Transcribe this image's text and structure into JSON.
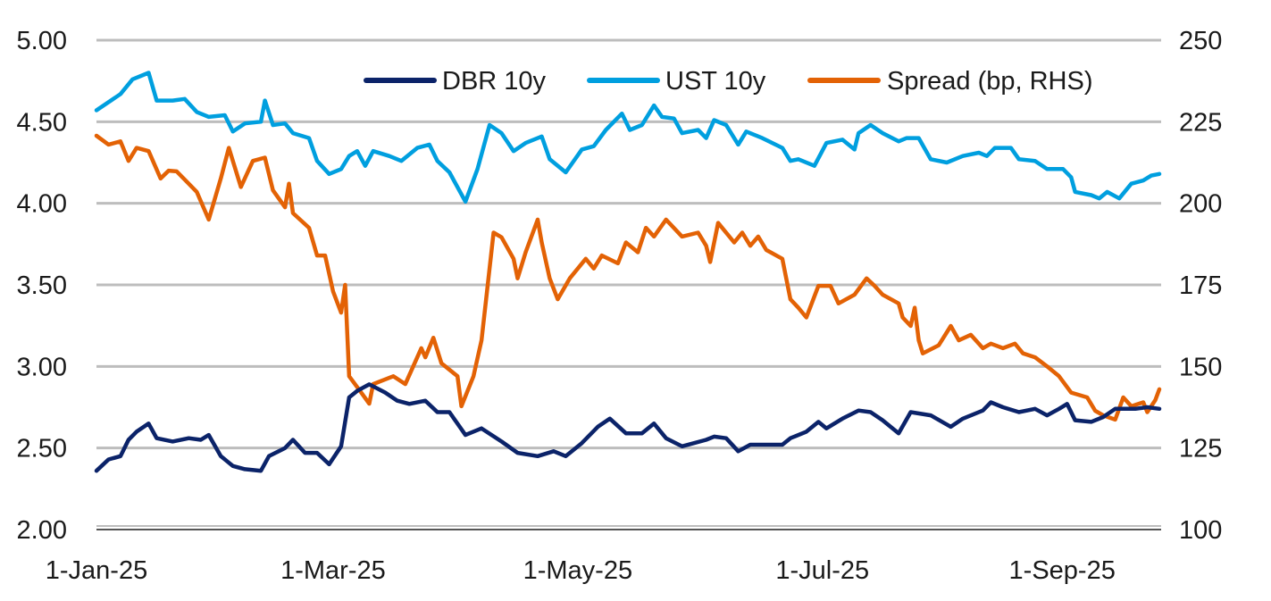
{
  "chart_data": {
    "type": "line",
    "title": "",
    "xlabel": "",
    "ylabel": "",
    "xlim": [
      0,
      265
    ],
    "ylim": [
      2.0,
      5.0
    ],
    "y2lim": [
      100,
      250
    ],
    "grid": true,
    "legend_position": "top-right",
    "x_ticks": [
      {
        "day": 0,
        "label": "1-Jan-25"
      },
      {
        "day": 59,
        "label": "1-Mar-25"
      },
      {
        "day": 120,
        "label": "1-May-25"
      },
      {
        "day": 181,
        "label": "1-Jul-25"
      },
      {
        "day": 243,
        "label": "1-Sep-25"
      }
    ],
    "y_ticks": [
      "2.00",
      "2.50",
      "3.00",
      "3.50",
      "4.00",
      "4.50",
      "5.00"
    ],
    "y_tick_values": [
      2.0,
      2.5,
      3.0,
      3.5,
      4.0,
      4.5,
      5.0
    ],
    "y2_ticks": [
      "100",
      "125",
      "150",
      "175",
      "200",
      "225",
      "250"
    ],
    "series": [
      {
        "name": "DBR 10y",
        "axis": "left",
        "color": "#0b2369",
        "points": [
          [
            0,
            2.36
          ],
          [
            3,
            2.43
          ],
          [
            6,
            2.45
          ],
          [
            8,
            2.55
          ],
          [
            10,
            2.6
          ],
          [
            13,
            2.65
          ],
          [
            15,
            2.56
          ],
          [
            19,
            2.54
          ],
          [
            23,
            2.56
          ],
          [
            26,
            2.55
          ],
          [
            28,
            2.58
          ],
          [
            31,
            2.45
          ],
          [
            34,
            2.39
          ],
          [
            37,
            2.37
          ],
          [
            41,
            2.36
          ],
          [
            43,
            2.45
          ],
          [
            47,
            2.5
          ],
          [
            49,
            2.55
          ],
          [
            52,
            2.47
          ],
          [
            55,
            2.47
          ],
          [
            58,
            2.4
          ],
          [
            61,
            2.51
          ],
          [
            63,
            2.81
          ],
          [
            65,
            2.85
          ],
          [
            68,
            2.89
          ],
          [
            72,
            2.84
          ],
          [
            75,
            2.79
          ],
          [
            78,
            2.77
          ],
          [
            82,
            2.79
          ],
          [
            85,
            2.72
          ],
          [
            88,
            2.72
          ],
          [
            92,
            2.58
          ],
          [
            96,
            2.62
          ],
          [
            101,
            2.54
          ],
          [
            105,
            2.47
          ],
          [
            110,
            2.45
          ],
          [
            114,
            2.48
          ],
          [
            117,
            2.45
          ],
          [
            121,
            2.53
          ],
          [
            125,
            2.63
          ],
          [
            128,
            2.68
          ],
          [
            132,
            2.59
          ],
          [
            136,
            2.59
          ],
          [
            139,
            2.65
          ],
          [
            142,
            2.56
          ],
          [
            146,
            2.51
          ],
          [
            152,
            2.55
          ],
          [
            154,
            2.57
          ],
          [
            157,
            2.56
          ],
          [
            160,
            2.48
          ],
          [
            163,
            2.52
          ],
          [
            167,
            2.52
          ],
          [
            171,
            2.52
          ],
          [
            173,
            2.56
          ],
          [
            177,
            2.6
          ],
          [
            180,
            2.66
          ],
          [
            182,
            2.62
          ],
          [
            186,
            2.68
          ],
          [
            190,
            2.73
          ],
          [
            193,
            2.72
          ],
          [
            196,
            2.67
          ],
          [
            200,
            2.59
          ],
          [
            203,
            2.72
          ],
          [
            208,
            2.7
          ],
          [
            213,
            2.63
          ],
          [
            216,
            2.68
          ],
          [
            221,
            2.73
          ],
          [
            223,
            2.78
          ],
          [
            226,
            2.75
          ],
          [
            230,
            2.72
          ],
          [
            234,
            2.74
          ],
          [
            237,
            2.7
          ],
          [
            240,
            2.74
          ],
          [
            242,
            2.77
          ],
          [
            244,
            2.67
          ],
          [
            248,
            2.66
          ],
          [
            251,
            2.69
          ],
          [
            254,
            2.74
          ],
          [
            259,
            2.74
          ],
          [
            262,
            2.75
          ],
          [
            265,
            2.74
          ]
        ]
      },
      {
        "name": "UST 10y",
        "axis": "left",
        "color": "#009fdf",
        "points": [
          [
            0,
            4.57
          ],
          [
            3,
            4.62
          ],
          [
            6,
            4.67
          ],
          [
            9,
            4.76
          ],
          [
            13,
            4.8
          ],
          [
            15,
            4.63
          ],
          [
            19,
            4.63
          ],
          [
            22,
            4.64
          ],
          [
            25,
            4.56
          ],
          [
            28,
            4.53
          ],
          [
            32,
            4.54
          ],
          [
            34,
            4.44
          ],
          [
            37,
            4.49
          ],
          [
            41,
            4.5
          ],
          [
            42,
            4.63
          ],
          [
            44,
            4.48
          ],
          [
            47,
            4.49
          ],
          [
            49,
            4.43
          ],
          [
            53,
            4.4
          ],
          [
            55,
            4.26
          ],
          [
            58,
            4.18
          ],
          [
            61,
            4.21
          ],
          [
            63,
            4.29
          ],
          [
            65,
            4.32
          ],
          [
            67,
            4.23
          ],
          [
            69,
            4.32
          ],
          [
            73,
            4.29
          ],
          [
            76,
            4.26
          ],
          [
            80,
            4.34
          ],
          [
            83,
            4.36
          ],
          [
            85,
            4.26
          ],
          [
            88,
            4.19
          ],
          [
            92,
            4.01
          ],
          [
            95,
            4.21
          ],
          [
            98,
            4.48
          ],
          [
            101,
            4.43
          ],
          [
            104,
            4.32
          ],
          [
            107,
            4.37
          ],
          [
            111,
            4.41
          ],
          [
            113,
            4.27
          ],
          [
            117,
            4.19
          ],
          [
            121,
            4.33
          ],
          [
            124,
            4.35
          ],
          [
            127,
            4.45
          ],
          [
            131,
            4.55
          ],
          [
            133,
            4.45
          ],
          [
            136,
            4.48
          ],
          [
            139,
            4.6
          ],
          [
            141,
            4.53
          ],
          [
            144,
            4.52
          ],
          [
            146,
            4.43
          ],
          [
            150,
            4.45
          ],
          [
            152,
            4.4
          ],
          [
            154,
            4.51
          ],
          [
            157,
            4.48
          ],
          [
            160,
            4.36
          ],
          [
            162,
            4.44
          ],
          [
            166,
            4.4
          ],
          [
            171,
            4.34
          ],
          [
            173,
            4.26
          ],
          [
            175,
            4.27
          ],
          [
            179,
            4.23
          ],
          [
            182,
            4.37
          ],
          [
            186,
            4.39
          ],
          [
            189,
            4.33
          ],
          [
            190,
            4.43
          ],
          [
            193,
            4.48
          ],
          [
            196,
            4.43
          ],
          [
            200,
            4.38
          ],
          [
            202,
            4.4
          ],
          [
            205,
            4.4
          ],
          [
            208,
            4.27
          ],
          [
            212,
            4.25
          ],
          [
            216,
            4.29
          ],
          [
            220,
            4.31
          ],
          [
            222,
            4.29
          ],
          [
            224,
            4.34
          ],
          [
            228,
            4.34
          ],
          [
            230,
            4.27
          ],
          [
            234,
            4.26
          ],
          [
            237,
            4.21
          ],
          [
            241,
            4.21
          ],
          [
            243,
            4.16
          ],
          [
            244,
            4.07
          ],
          [
            248,
            4.05
          ],
          [
            250,
            4.03
          ],
          [
            252,
            4.07
          ],
          [
            255,
            4.03
          ],
          [
            258,
            4.12
          ],
          [
            261,
            4.14
          ],
          [
            263,
            4.17
          ],
          [
            265,
            4.18
          ]
        ]
      },
      {
        "name": "Spread (bp, RHS)",
        "axis": "right",
        "color": "#e36205",
        "points": [
          [
            0,
            220.7
          ],
          [
            3,
            218
          ],
          [
            6,
            219
          ],
          [
            8,
            213
          ],
          [
            10,
            217
          ],
          [
            13,
            216
          ],
          [
            16,
            207.6
          ],
          [
            18,
            210
          ],
          [
            20,
            209.8
          ],
          [
            23,
            206
          ],
          [
            25,
            203.5
          ],
          [
            28,
            195
          ],
          [
            31,
            207.6
          ],
          [
            33,
            217
          ],
          [
            36,
            205
          ],
          [
            39,
            213
          ],
          [
            42,
            214
          ],
          [
            44,
            204
          ],
          [
            47,
            198.8
          ],
          [
            48,
            206
          ],
          [
            49,
            197
          ],
          [
            53,
            192.5
          ],
          [
            55,
            184
          ],
          [
            57,
            184
          ],
          [
            59,
            173
          ],
          [
            61,
            166.5
          ],
          [
            62,
            175
          ],
          [
            63,
            147
          ],
          [
            66,
            142
          ],
          [
            68,
            138.6
          ],
          [
            69,
            144.6
          ],
          [
            74,
            147
          ],
          [
            77,
            144.6
          ],
          [
            81,
            155.6
          ],
          [
            82,
            152.8
          ],
          [
            84,
            158.8
          ],
          [
            86,
            151
          ],
          [
            90,
            147
          ],
          [
            91,
            137.8
          ],
          [
            94,
            147
          ],
          [
            96,
            158
          ],
          [
            99,
            191
          ],
          [
            101,
            189.6
          ],
          [
            104,
            183
          ],
          [
            105,
            177
          ],
          [
            107,
            185
          ],
          [
            110,
            195
          ],
          [
            111,
            188
          ],
          [
            113,
            177
          ],
          [
            115,
            170.6
          ],
          [
            118,
            177
          ],
          [
            122,
            183
          ],
          [
            124,
            180
          ],
          [
            126,
            184
          ],
          [
            130,
            181.6
          ],
          [
            132,
            188
          ],
          [
            135,
            185
          ],
          [
            137,
            192.5
          ],
          [
            139,
            189.8
          ],
          [
            142,
            195
          ],
          [
            146,
            189.8
          ],
          [
            150,
            191
          ],
          [
            152,
            187
          ],
          [
            153,
            182
          ],
          [
            155,
            194
          ],
          [
            159,
            188
          ],
          [
            161,
            191
          ],
          [
            163,
            187
          ],
          [
            165,
            189.8
          ],
          [
            167,
            185.7
          ],
          [
            171,
            183
          ],
          [
            173,
            170.6
          ],
          [
            175,
            168
          ],
          [
            177,
            165
          ],
          [
            180,
            174.7
          ],
          [
            183,
            174.7
          ],
          [
            185,
            169.3
          ],
          [
            189,
            172
          ],
          [
            192,
            177
          ],
          [
            194,
            174.7
          ],
          [
            196,
            172
          ],
          [
            200,
            169.3
          ],
          [
            201,
            165
          ],
          [
            203,
            162.4
          ],
          [
            204,
            168
          ],
          [
            205,
            158
          ],
          [
            206,
            154
          ],
          [
            210,
            156.5
          ],
          [
            213,
            162.4
          ],
          [
            215,
            158
          ],
          [
            218,
            159.7
          ],
          [
            221,
            155.6
          ],
          [
            223,
            157
          ],
          [
            226,
            155.6
          ],
          [
            229,
            157
          ],
          [
            231,
            154
          ],
          [
            234,
            152.8
          ],
          [
            237,
            150
          ],
          [
            240,
            147
          ],
          [
            243,
            142
          ],
          [
            247,
            140.5
          ],
          [
            249,
            136.4
          ],
          [
            251,
            135
          ],
          [
            254,
            133.7
          ],
          [
            256,
            140.5
          ],
          [
            258,
            137.8
          ],
          [
            261,
            139
          ],
          [
            262,
            136
          ],
          [
            264,
            139.7
          ],
          [
            265,
            143
          ]
        ]
      }
    ]
  }
}
